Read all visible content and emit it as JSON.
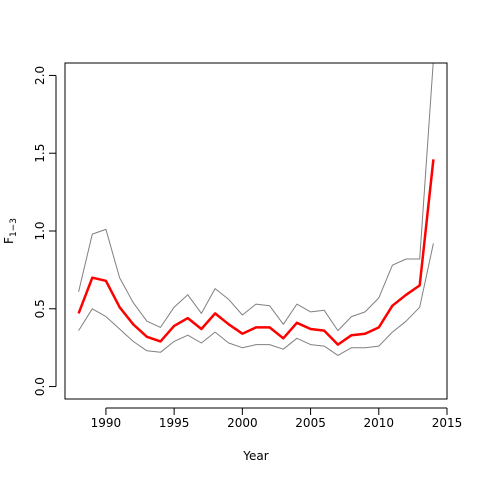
{
  "chart_data": {
    "type": "line",
    "xlabel": "Year",
    "ylabel": "F",
    "ylabel_subscript": "1−3",
    "xlim": [
      1987,
      2015
    ],
    "ylim": [
      -0.08,
      2.08
    ],
    "x_ticks": [
      1990,
      1995,
      2000,
      2005,
      2010,
      2015
    ],
    "y_ticks": [
      0.0,
      0.5,
      1.0,
      1.5,
      2.0
    ],
    "y_tick_labels": [
      "0.0",
      "0.5",
      "1.0",
      "1.5",
      "2.0"
    ],
    "grid": false,
    "legend": false,
    "x": [
      1988,
      1989,
      1990,
      1991,
      1992,
      1993,
      1994,
      1995,
      1996,
      1997,
      1998,
      1999,
      2000,
      2001,
      2002,
      2003,
      2004,
      2005,
      2006,
      2007,
      2008,
      2009,
      2010,
      2011,
      2012,
      2013,
      2014
    ],
    "series": [
      {
        "role": "estimate",
        "color": "#ff0000",
        "values": [
          0.47,
          0.7,
          0.68,
          0.51,
          0.4,
          0.32,
          0.29,
          0.39,
          0.44,
          0.37,
          0.47,
          0.4,
          0.34,
          0.38,
          0.38,
          0.31,
          0.41,
          0.37,
          0.36,
          0.27,
          0.33,
          0.34,
          0.38,
          0.52,
          0.59,
          0.65,
          1.46
        ]
      },
      {
        "role": "upper bound",
        "color": "#808080",
        "values": [
          0.61,
          0.98,
          1.01,
          0.7,
          0.54,
          0.42,
          0.38,
          0.51,
          0.59,
          0.47,
          0.63,
          0.56,
          0.46,
          0.53,
          0.52,
          0.4,
          0.53,
          0.48,
          0.49,
          0.36,
          0.45,
          0.48,
          0.57,
          0.78,
          0.82,
          0.82,
          2.1
        ]
      },
      {
        "role": "lower bound",
        "color": "#808080",
        "values": [
          0.36,
          0.5,
          0.45,
          0.37,
          0.29,
          0.23,
          0.22,
          0.29,
          0.33,
          0.28,
          0.35,
          0.28,
          0.25,
          0.27,
          0.27,
          0.24,
          0.31,
          0.27,
          0.26,
          0.2,
          0.25,
          0.25,
          0.26,
          0.35,
          0.42,
          0.51,
          0.92
        ]
      }
    ]
  }
}
